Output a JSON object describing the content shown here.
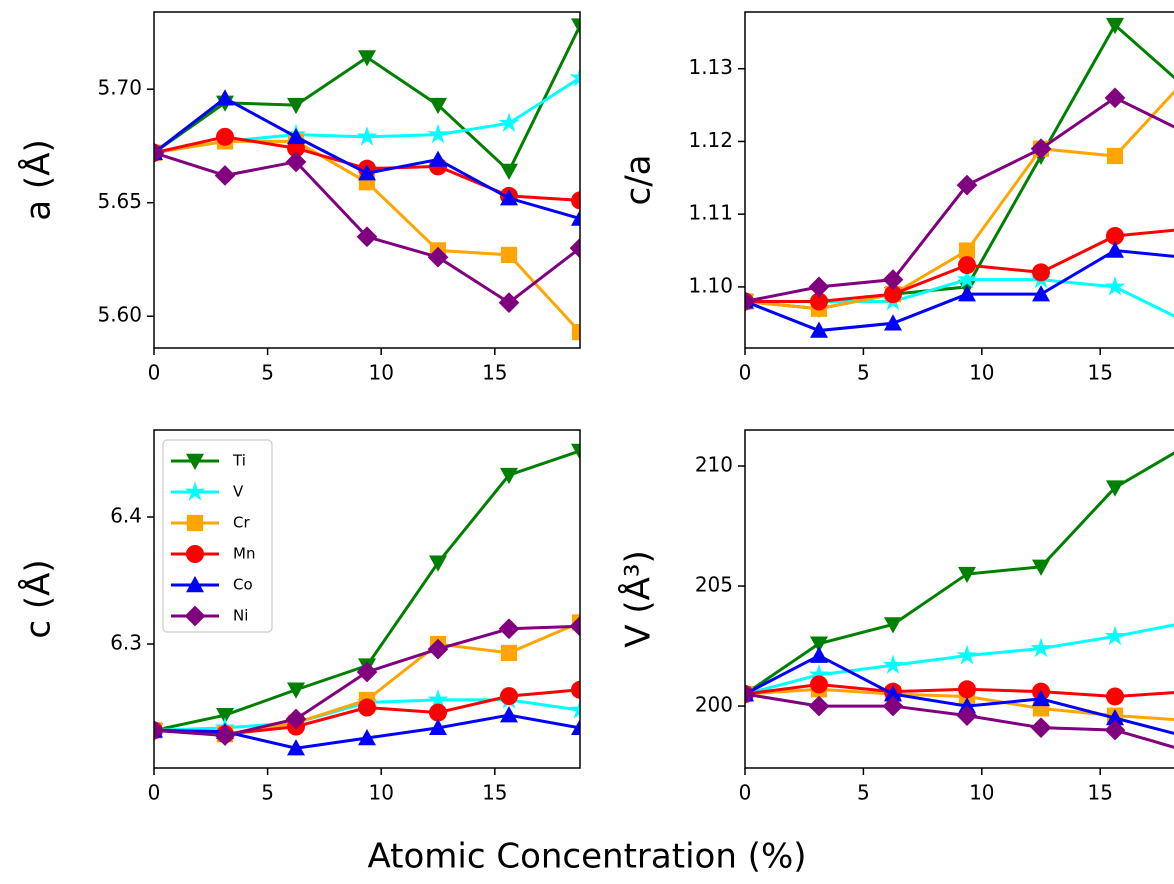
{
  "xlabel": "Atomic Concentration (%)",
  "chart_data": [
    {
      "type": "line",
      "ylabel": "a (Å)",
      "xlim": [
        0,
        18.75
      ],
      "xticks": [
        0,
        5,
        10,
        15
      ],
      "ylim": [
        5.586,
        5.734
      ],
      "yticks": [
        {
          "value": 5.6,
          "label": "5.60"
        },
        {
          "value": 5.65,
          "label": "5.65"
        },
        {
          "value": 5.7,
          "label": "5.70"
        }
      ],
      "x": [
        0,
        3.125,
        6.25,
        9.375,
        12.5,
        15.625,
        18.75
      ],
      "series": [
        {
          "name": "Ti",
          "color": "#008000",
          "marker": "v",
          "values": [
            5.672,
            5.694,
            5.693,
            5.714,
            5.693,
            5.664,
            5.728
          ]
        },
        {
          "name": "V",
          "color": "#00ffff",
          "marker": "*",
          "values": [
            5.672,
            5.677,
            5.68,
            5.679,
            5.68,
            5.685,
            5.705
          ]
        },
        {
          "name": "Cr",
          "color": "#ffa500",
          "marker": "s",
          "values": [
            5.672,
            5.677,
            5.677,
            5.659,
            5.629,
            5.627,
            5.593
          ]
        },
        {
          "name": "Mn",
          "color": "#ff0000",
          "marker": "o",
          "values": [
            5.672,
            5.679,
            5.674,
            5.665,
            5.666,
            5.653,
            5.651
          ]
        },
        {
          "name": "Co",
          "color": "#0000ff",
          "marker": "^",
          "values": [
            5.672,
            5.696,
            5.679,
            5.663,
            5.669,
            5.652,
            5.643
          ]
        },
        {
          "name": "Ni",
          "color": "#800080",
          "marker": "D",
          "values": [
            5.672,
            5.662,
            5.668,
            5.635,
            5.626,
            5.606,
            5.63
          ]
        }
      ]
    },
    {
      "type": "line",
      "ylabel": "c/a",
      "xlim": [
        0,
        18.75
      ],
      "xticks": [
        0,
        5,
        10,
        15
      ],
      "ylim": [
        1.0916,
        1.1378
      ],
      "yticks": [
        {
          "value": 1.1,
          "label": "1.10"
        },
        1.11,
        1.12,
        1.13
      ],
      "x": [
        0,
        3.125,
        6.25,
        9.375,
        12.5,
        15.625,
        18.75
      ],
      "series": [
        {
          "name": "Ti",
          "color": "#008000",
          "marker": "v",
          "values": [
            1.098,
            1.097,
            1.099,
            1.1,
            1.118,
            1.136,
            1.127
          ]
        },
        {
          "name": "V",
          "color": "#00ffff",
          "marker": "*",
          "values": [
            1.098,
            1.098,
            1.098,
            1.101,
            1.101,
            1.1,
            1.095
          ]
        },
        {
          "name": "Cr",
          "color": "#ffa500",
          "marker": "s",
          "values": [
            1.098,
            1.097,
            1.099,
            1.105,
            1.119,
            1.118,
            1.129
          ]
        },
        {
          "name": "Mn",
          "color": "#ff0000",
          "marker": "o",
          "values": [
            1.098,
            1.098,
            1.099,
            1.103,
            1.102,
            1.107,
            1.108
          ]
        },
        {
          "name": "Co",
          "color": "#0000ff",
          "marker": "^",
          "values": [
            1.098,
            1.094,
            1.095,
            1.099,
            1.099,
            1.105,
            1.104
          ]
        },
        {
          "name": "Ni",
          "color": "#800080",
          "marker": "D",
          "values": [
            1.098,
            1.1,
            1.101,
            1.114,
            1.119,
            1.126,
            1.121
          ]
        }
      ]
    },
    {
      "type": "line",
      "ylabel": "c (Å)",
      "xlim": [
        0,
        18.75
      ],
      "xticks": [
        0,
        5,
        10,
        15
      ],
      "ylim": [
        6.2024,
        6.4685
      ],
      "yticks": [
        6.3,
        6.4
      ],
      "legend": "upper left",
      "x": [
        0,
        3.125,
        6.25,
        9.375,
        12.5,
        15.625,
        18.75
      ],
      "series": [
        {
          "name": "Ti",
          "color": "#008000",
          "marker": "v",
          "values": [
            6.232,
            6.244,
            6.264,
            6.283,
            6.364,
            6.433,
            6.452
          ]
        },
        {
          "name": "V",
          "color": "#00ffff",
          "marker": "*",
          "values": [
            6.232,
            6.234,
            6.238,
            6.254,
            6.256,
            6.256,
            6.248
          ]
        },
        {
          "name": "Cr",
          "color": "#ffa500",
          "marker": "s",
          "values": [
            6.232,
            6.229,
            6.238,
            6.256,
            6.3,
            6.293,
            6.317
          ]
        },
        {
          "name": "Mn",
          "color": "#ff0000",
          "marker": "o",
          "values": [
            6.232,
            6.229,
            6.235,
            6.25,
            6.246,
            6.259,
            6.264
          ]
        },
        {
          "name": "Co",
          "color": "#0000ff",
          "marker": "^",
          "values": [
            6.232,
            6.231,
            6.218,
            6.226,
            6.234,
            6.244,
            6.234
          ]
        },
        {
          "name": "Ni",
          "color": "#800080",
          "marker": "D",
          "values": [
            6.232,
            6.228,
            6.241,
            6.278,
            6.296,
            6.312,
            6.314
          ]
        }
      ]
    },
    {
      "type": "line",
      "ylabel": "V (Å³)",
      "xlim": [
        0,
        18.75
      ],
      "xticks": [
        0,
        5,
        10,
        15
      ],
      "ylim": [
        197.42,
        211.5
      ],
      "yticks": [
        200,
        205,
        210
      ],
      "x": [
        0,
        3.125,
        6.25,
        9.375,
        12.5,
        15.625,
        18.75
      ],
      "series": [
        {
          "name": "Ti",
          "color": "#008000",
          "marker": "v",
          "values": [
            200.5,
            202.6,
            203.4,
            205.5,
            205.8,
            209.1,
            210.9
          ]
        },
        {
          "name": "V",
          "color": "#00ffff",
          "marker": "*",
          "values": [
            200.5,
            201.3,
            201.7,
            202.1,
            202.4,
            202.9,
            203.5
          ]
        },
        {
          "name": "Cr",
          "color": "#ffa500",
          "marker": "s",
          "values": [
            200.5,
            200.7,
            200.5,
            200.4,
            199.9,
            199.6,
            199.4
          ]
        },
        {
          "name": "Mn",
          "color": "#ff0000",
          "marker": "o",
          "values": [
            200.5,
            200.9,
            200.6,
            200.7,
            200.6,
            200.4,
            200.6
          ]
        },
        {
          "name": "Co",
          "color": "#0000ff",
          "marker": "^",
          "values": [
            200.5,
            202.1,
            200.5,
            200.0,
            200.3,
            199.5,
            198.7
          ]
        },
        {
          "name": "Ni",
          "color": "#800080",
          "marker": "D",
          "values": [
            200.5,
            200.0,
            200.0,
            199.6,
            199.1,
            199.0,
            198.1
          ]
        }
      ]
    }
  ]
}
